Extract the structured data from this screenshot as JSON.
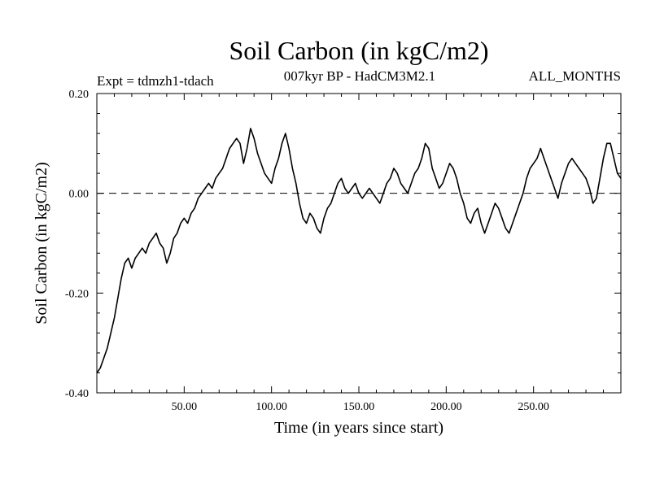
{
  "chart_data": {
    "type": "line",
    "title": "Soil Carbon (in kgC/m2)",
    "subtitle_left": "Expt = tdmzh1-tdach",
    "subtitle_center": "007kyr BP - HadCM3M2.1",
    "subtitle_right": "ALL_MONTHS",
    "xlabel": "Time (in years since start)",
    "ylabel": "Soil Carbon (in kgC/m2)",
    "xlim": [
      0,
      300
    ],
    "ylim": [
      -0.4,
      0.2
    ],
    "xticks": [
      50,
      100,
      150,
      200,
      250
    ],
    "xtick_labels": [
      "50.00",
      "100.00",
      "150.00",
      "200.00",
      "250.00"
    ],
    "yticks": [
      -0.4,
      -0.2,
      0.0,
      0.2
    ],
    "ytick_labels": [
      "-0.40",
      "-0.20",
      "0.00",
      "0.20"
    ],
    "reference_line": 0.0,
    "series": [
      {
        "name": "Soil Carbon",
        "x": [
          0,
          2,
          4,
          6,
          8,
          10,
          12,
          14,
          16,
          18,
          20,
          22,
          24,
          26,
          28,
          30,
          32,
          34,
          36,
          38,
          40,
          42,
          44,
          46,
          48,
          50,
          52,
          54,
          56,
          58,
          60,
          62,
          64,
          66,
          68,
          70,
          72,
          74,
          76,
          78,
          80,
          82,
          84,
          86,
          88,
          90,
          92,
          94,
          96,
          98,
          100,
          102,
          104,
          106,
          108,
          110,
          112,
          114,
          116,
          118,
          120,
          122,
          124,
          126,
          128,
          130,
          132,
          134,
          136,
          138,
          140,
          142,
          144,
          146,
          148,
          150,
          152,
          154,
          156,
          158,
          160,
          162,
          164,
          166,
          168,
          170,
          172,
          174,
          176,
          178,
          180,
          182,
          184,
          186,
          188,
          190,
          192,
          194,
          196,
          198,
          200,
          202,
          204,
          206,
          208,
          210,
          212,
          214,
          216,
          218,
          220,
          222,
          224,
          226,
          228,
          230,
          232,
          234,
          236,
          238,
          240,
          242,
          244,
          246,
          248,
          250,
          252,
          254,
          256,
          258,
          260,
          262,
          264,
          266,
          268,
          270,
          272,
          274,
          276,
          278,
          280,
          282,
          284,
          286,
          288,
          290,
          292,
          294,
          296,
          298,
          300
        ],
        "values": [
          -0.36,
          -0.35,
          -0.33,
          -0.31,
          -0.28,
          -0.25,
          -0.21,
          -0.17,
          -0.14,
          -0.13,
          -0.15,
          -0.13,
          -0.12,
          -0.11,
          -0.12,
          -0.1,
          -0.09,
          -0.08,
          -0.1,
          -0.11,
          -0.14,
          -0.12,
          -0.09,
          -0.08,
          -0.06,
          -0.05,
          -0.06,
          -0.04,
          -0.03,
          -0.01,
          0.0,
          0.01,
          0.02,
          0.01,
          0.03,
          0.04,
          0.05,
          0.07,
          0.09,
          0.1,
          0.11,
          0.1,
          0.06,
          0.09,
          0.13,
          0.11,
          0.08,
          0.06,
          0.04,
          0.03,
          0.02,
          0.05,
          0.07,
          0.1,
          0.12,
          0.09,
          0.05,
          0.02,
          -0.02,
          -0.05,
          -0.06,
          -0.04,
          -0.05,
          -0.07,
          -0.08,
          -0.05,
          -0.03,
          -0.02,
          0.0,
          0.02,
          0.03,
          0.01,
          0.0,
          0.01,
          0.02,
          0.0,
          -0.01,
          0.0,
          0.01,
          0.0,
          -0.01,
          -0.02,
          0.0,
          0.02,
          0.03,
          0.05,
          0.04,
          0.02,
          0.01,
          0.0,
          0.02,
          0.04,
          0.05,
          0.07,
          0.1,
          0.09,
          0.05,
          0.03,
          0.01,
          0.02,
          0.04,
          0.06,
          0.05,
          0.03,
          0.0,
          -0.02,
          -0.05,
          -0.06,
          -0.04,
          -0.03,
          -0.06,
          -0.08,
          -0.06,
          -0.04,
          -0.02,
          -0.03,
          -0.05,
          -0.07,
          -0.08,
          -0.06,
          -0.04,
          -0.02,
          0.0,
          0.03,
          0.05,
          0.06,
          0.07,
          0.09,
          0.07,
          0.05,
          0.03,
          0.01,
          -0.01,
          0.02,
          0.04,
          0.06,
          0.07,
          0.06,
          0.05,
          0.04,
          0.03,
          0.01,
          -0.02,
          -0.01,
          0.03,
          0.07,
          0.1,
          0.1,
          0.07,
          0.04,
          0.03
        ]
      }
    ]
  }
}
